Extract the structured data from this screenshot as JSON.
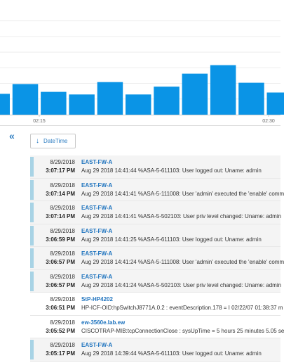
{
  "chart_data": {
    "type": "bar",
    "values": [
      32,
      47,
      35,
      31,
      50,
      31,
      43,
      63,
      76,
      49,
      34
    ],
    "ylim": [
      0,
      176
    ],
    "x_ticks": [
      "02:15",
      "02:30"
    ],
    "bar_color": "#0a94e6",
    "grid": true
  },
  "toolbar": {
    "collapse_icon": "double-chevron-left-icon",
    "sort_icon": "arrow-down-icon",
    "sort_label": "DateTime"
  },
  "logs": [
    {
      "date": "8/29/2018",
      "time": "3:07:17 PM",
      "source": "EAST-FW-A",
      "message": "Aug 29 2018 14:41:44 %ASA-5-611103: User logged out: Uname: admin",
      "unread": true
    },
    {
      "date": "8/29/2018",
      "time": "3:07:14 PM",
      "source": "EAST-FW-A",
      "message": "Aug 29 2018 14:41:41 %ASA-5-111008: User 'admin' executed the 'enable' comm",
      "unread": true
    },
    {
      "date": "8/29/2018",
      "time": "3:07:14 PM",
      "source": "EAST-FW-A",
      "message": "Aug 29 2018 14:41:41 %ASA-5-502103: User priv level changed: Uname: admin",
      "unread": true
    },
    {
      "date": "8/29/2018",
      "time": "3:06:59 PM",
      "source": "EAST-FW-A",
      "message": "Aug 29 2018 14:41:25 %ASA-5-611103: User logged out: Uname: admin",
      "unread": true
    },
    {
      "date": "8/29/2018",
      "time": "3:06:57 PM",
      "source": "EAST-FW-A",
      "message": "Aug 29 2018 14:41:24 %ASA-5-111008: User 'admin' executed the 'enable' comm",
      "unread": true
    },
    {
      "date": "8/29/2018",
      "time": "3:06:57 PM",
      "source": "EAST-FW-A",
      "message": "Aug 29 2018 14:41:24 %ASA-5-502103: User priv level changed: Uname: admin",
      "unread": true
    },
    {
      "date": "8/29/2018",
      "time": "3:06:51 PM",
      "source": "StP-HP4202",
      "message": "HP-ICF-OID:hpSwitchJ8771A.0.2 : eventDescription.178 = I 02/22/07 01:38:37 m",
      "unread": false
    },
    {
      "date": "8/29/2018",
      "time": "3:05:52 PM",
      "source": "ew-3560e.lab.ew",
      "message": "CISCOTRAP-MIB:tcpConnectionClose : sysUpTime = 5 hours 25 minutes 5.05 se",
      "unread": false
    },
    {
      "date": "8/29/2018",
      "time": "3:05:17 PM",
      "source": "EAST-FW-A",
      "message": "Aug 29 2018 14:39:44 %ASA-5-611103: User logged out: Uname: admin",
      "unread": true
    }
  ]
}
